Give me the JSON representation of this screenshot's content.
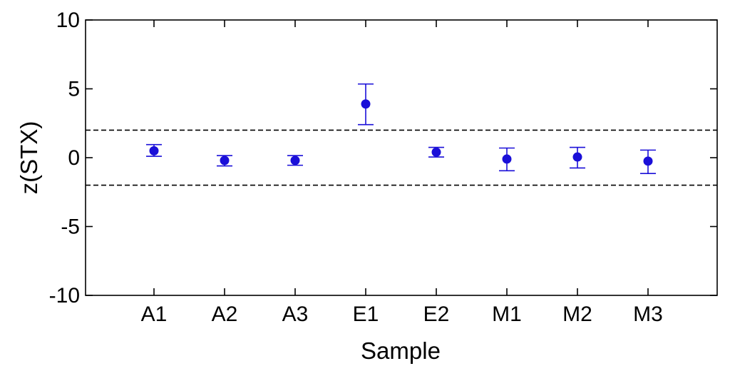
{
  "chart_data": {
    "type": "scatter",
    "title": "",
    "xlabel": "Sample",
    "ylabel": "z(STX)",
    "categories": [
      "A1",
      "A2",
      "A3",
      "E1",
      "E2",
      "M1",
      "M2",
      "M3"
    ],
    "series": [
      {
        "values": [
          0.5,
          -0.2,
          -0.2,
          3.9,
          0.4,
          -0.1,
          0.05,
          -0.25
        ],
        "error_low": [
          0.1,
          -0.6,
          -0.55,
          2.4,
          0.05,
          -0.95,
          -0.75,
          -1.15
        ],
        "error_high": [
          0.95,
          0.15,
          0.15,
          5.35,
          0.75,
          0.7,
          0.75,
          0.55
        ],
        "color": "#1a0fd8"
      }
    ],
    "ylim": [
      -10,
      10
    ],
    "yticks": [
      10,
      5,
      0,
      -5,
      -10
    ],
    "reference_lines": [
      {
        "y": 2,
        "style": "dashed",
        "color": "#000000"
      },
      {
        "y": -2,
        "style": "dashed",
        "color": "#000000"
      }
    ],
    "grid": false,
    "legend": "none"
  }
}
